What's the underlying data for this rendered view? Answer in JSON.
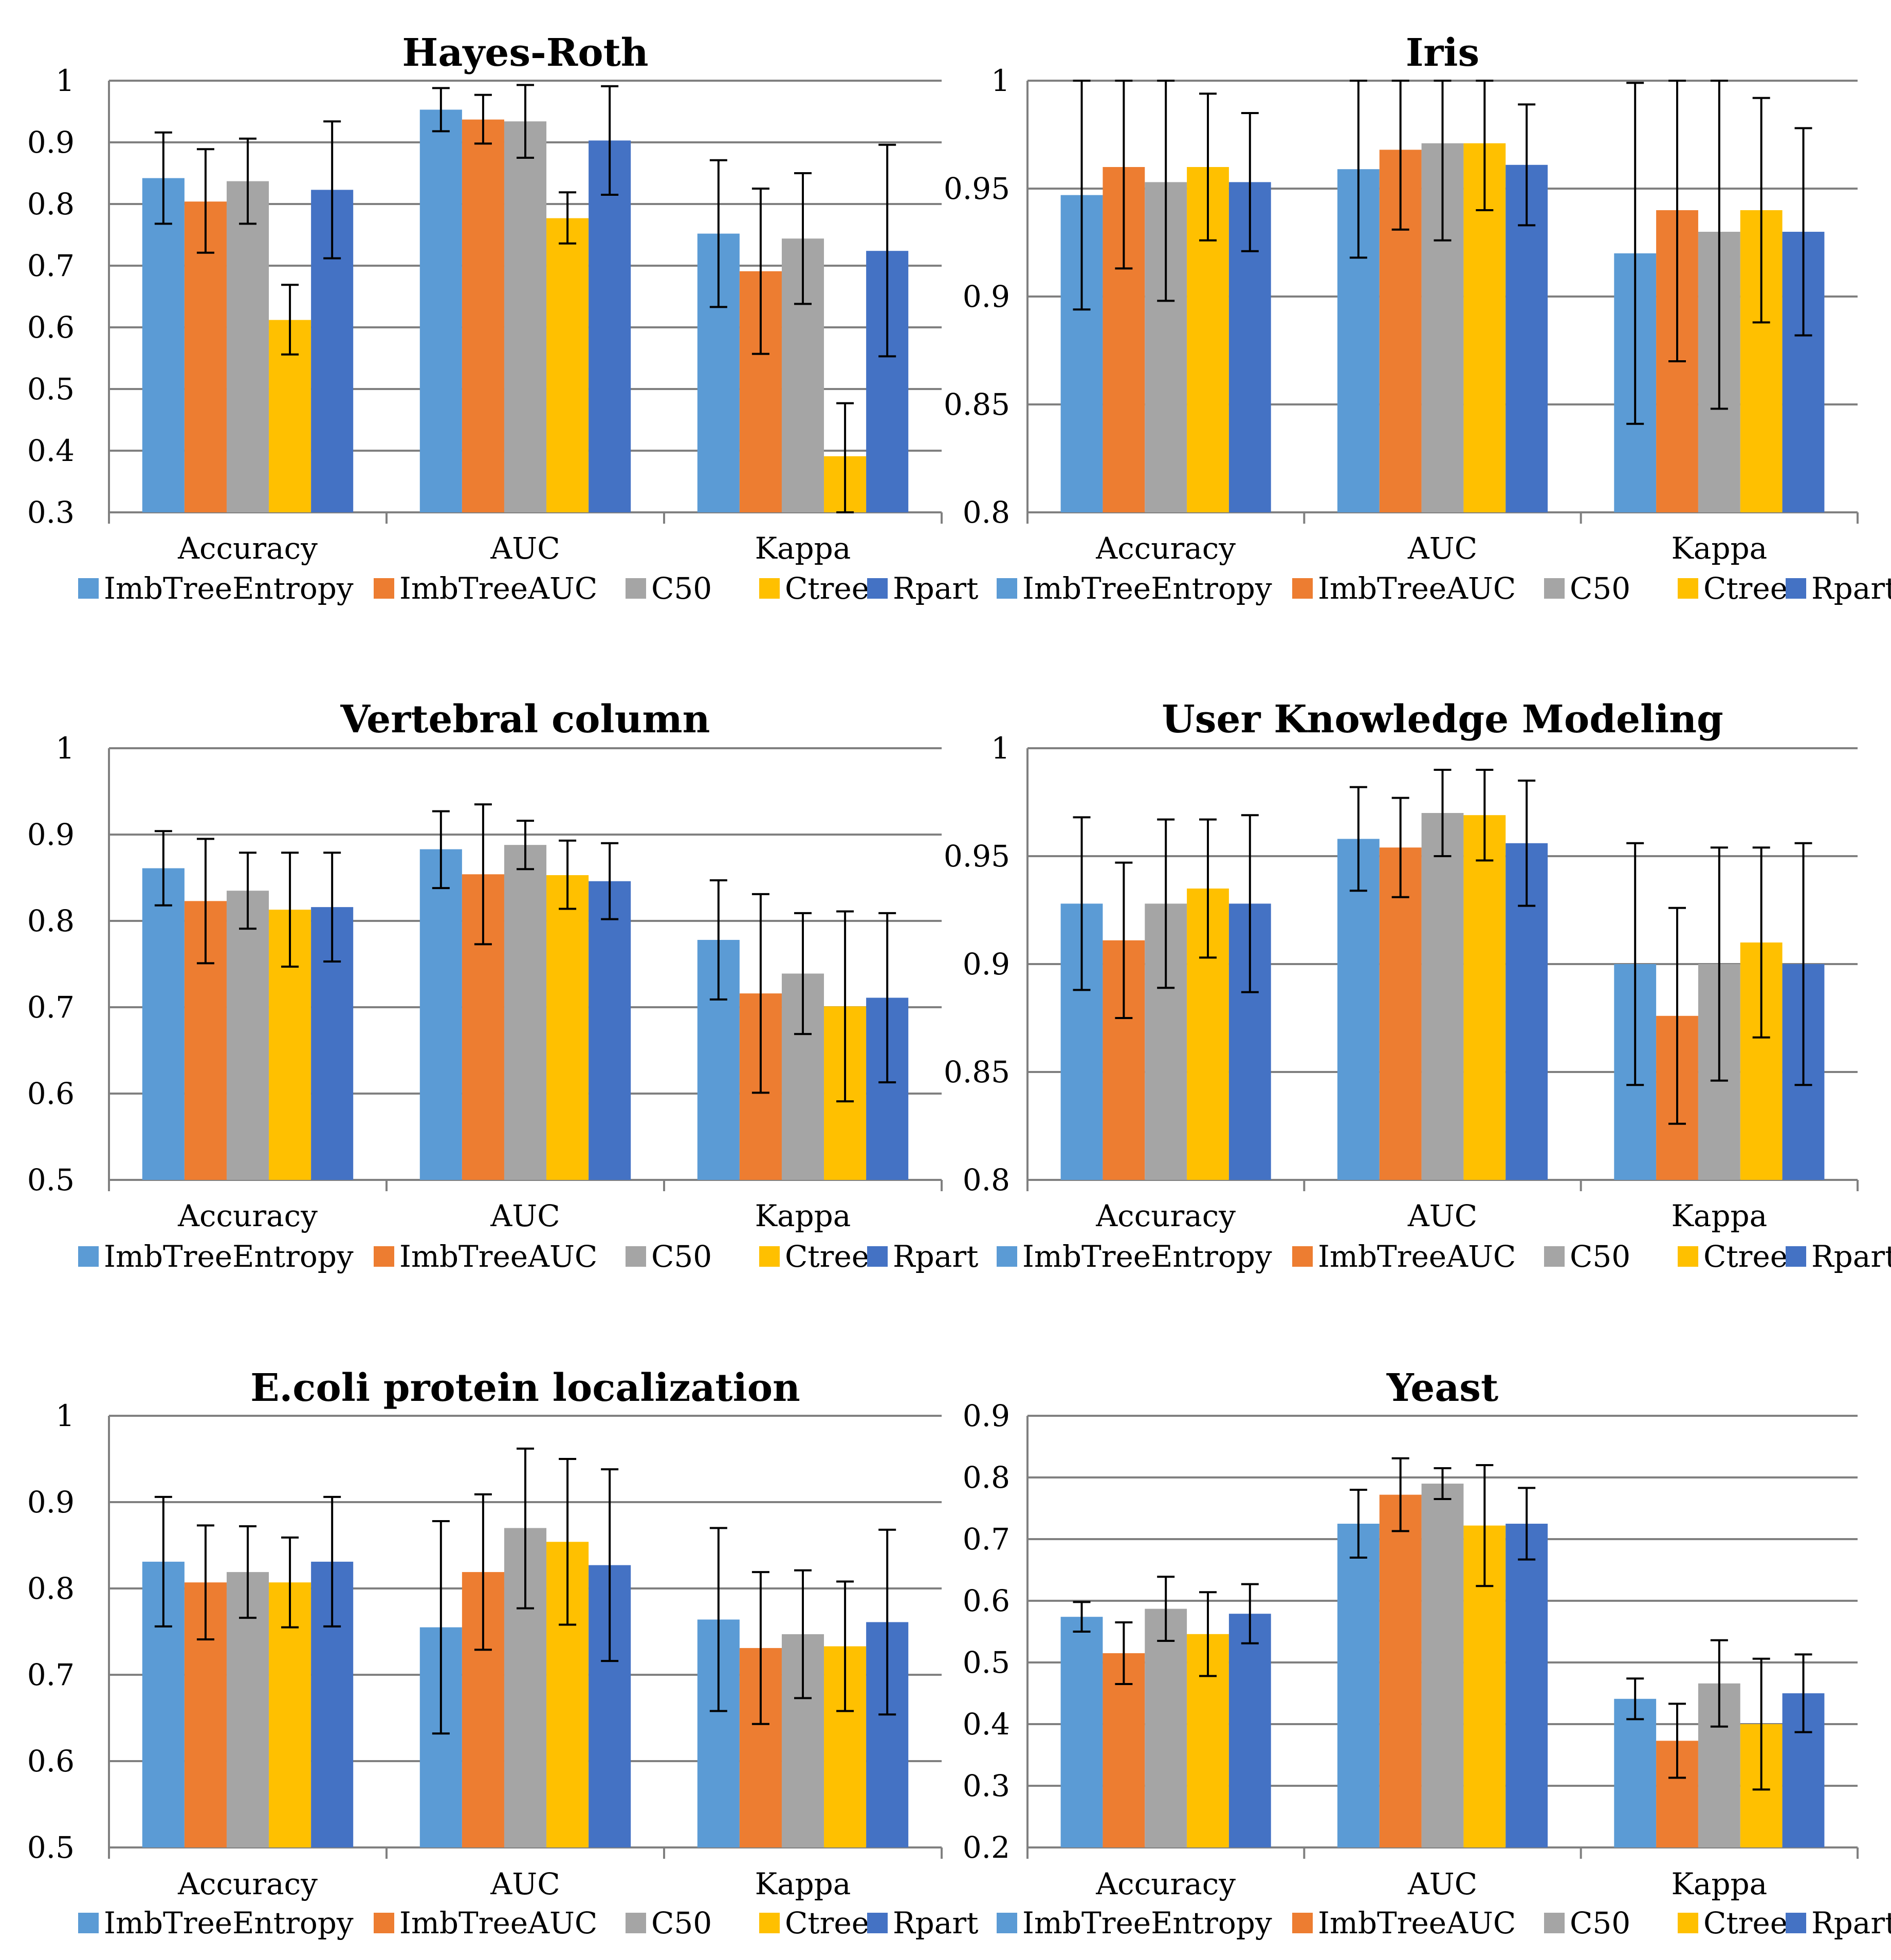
{
  "figure": {
    "series_colors": {
      "ImbTreeEntropy": "#5B9BD5",
      "ImbTreeAUC": "#ED7D31",
      "C50": "#A5A5A5",
      "Ctree": "#FFC000",
      "Rpart": "#4472C4"
    },
    "gridline_color": "#808080"
  },
  "chart_data": [
    {
      "type": "bar",
      "title": "Hayes-Roth",
      "categories": [
        "Accuracy",
        "AUC",
        "Kappa"
      ],
      "ylim": [
        0.3,
        1.0
      ],
      "yticks": [
        0.3,
        0.4,
        0.5,
        0.6,
        0.7,
        0.8,
        0.9,
        1.0
      ],
      "ytick_labels": [
        "0.3",
        "0.4",
        "0.5",
        "0.6",
        "0.7",
        "0.8",
        "0.9",
        "1"
      ],
      "legend_position": "bottom",
      "grid": true,
      "series": [
        {
          "name": "ImbTreeEntropy",
          "values": [
            0.842,
            0.953,
            0.752
          ],
          "err_low": [
            0.768,
            0.918,
            0.633
          ],
          "err_high": [
            0.916,
            0.988,
            0.871
          ]
        },
        {
          "name": "ImbTreeAUC",
          "values": [
            0.804,
            0.937,
            0.691
          ],
          "err_low": [
            0.721,
            0.898,
            0.557
          ],
          "err_high": [
            0.889,
            0.977,
            0.825
          ]
        },
        {
          "name": "C50",
          "values": [
            0.837,
            0.934,
            0.744
          ],
          "err_low": [
            0.768,
            0.875,
            0.638
          ],
          "err_high": [
            0.906,
            0.993,
            0.85
          ]
        },
        {
          "name": "Ctree",
          "values": [
            0.612,
            0.777,
            0.391
          ],
          "err_low": [
            0.556,
            0.736,
            0.3
          ],
          "err_high": [
            0.669,
            0.819,
            0.477
          ]
        },
        {
          "name": "Rpart",
          "values": [
            0.823,
            0.903,
            0.724
          ],
          "err_low": [
            0.712,
            0.815,
            0.553
          ],
          "err_high": [
            0.934,
            0.991,
            0.896
          ]
        }
      ]
    },
    {
      "type": "bar",
      "title": "Iris",
      "categories": [
        "Accuracy",
        "AUC",
        "Kappa"
      ],
      "ylim": [
        0.8,
        1.0
      ],
      "yticks": [
        0.8,
        0.85,
        0.9,
        0.95,
        1.0
      ],
      "ytick_labels": [
        "0.8",
        "0.85",
        "0.9",
        "0.95",
        "1"
      ],
      "legend_position": "bottom",
      "grid": true,
      "series": [
        {
          "name": "ImbTreeEntropy",
          "values": [
            0.947,
            0.959,
            0.92
          ],
          "err_low": [
            0.894,
            0.918,
            0.841
          ],
          "err_high": [
            1.0,
            1.0,
            0.999
          ]
        },
        {
          "name": "ImbTreeAUC",
          "values": [
            0.96,
            0.968,
            0.94
          ],
          "err_low": [
            0.913,
            0.931,
            0.87
          ],
          "err_high": [
            1.0,
            1.0,
            1.0
          ]
        },
        {
          "name": "C50",
          "values": [
            0.953,
            0.971,
            0.93
          ],
          "err_low": [
            0.898,
            0.926,
            0.848
          ],
          "err_high": [
            1.0,
            1.0,
            1.0
          ]
        },
        {
          "name": "Ctree",
          "values": [
            0.96,
            0.971,
            0.94
          ],
          "err_low": [
            0.926,
            0.94,
            0.888
          ],
          "err_high": [
            0.994,
            1.0,
            0.992
          ]
        },
        {
          "name": "Rpart",
          "values": [
            0.953,
            0.961,
            0.93
          ],
          "err_low": [
            0.921,
            0.933,
            0.882
          ],
          "err_high": [
            0.985,
            0.989,
            0.978
          ]
        }
      ]
    },
    {
      "type": "bar",
      "title": "Vertebral column",
      "categories": [
        "Accuracy",
        "AUC",
        "Kappa"
      ],
      "ylim": [
        0.5,
        1.0
      ],
      "yticks": [
        0.5,
        0.6,
        0.7,
        0.8,
        0.9,
        1.0
      ],
      "ytick_labels": [
        "0.5",
        "0.6",
        "0.7",
        "0.8",
        "0.9",
        "1"
      ],
      "legend_position": "bottom",
      "grid": true,
      "series": [
        {
          "name": "ImbTreeEntropy",
          "values": [
            0.861,
            0.883,
            0.778
          ],
          "err_low": [
            0.818,
            0.838,
            0.709
          ],
          "err_high": [
            0.904,
            0.927,
            0.847
          ]
        },
        {
          "name": "ImbTreeAUC",
          "values": [
            0.823,
            0.854,
            0.716
          ],
          "err_low": [
            0.751,
            0.773,
            0.601
          ],
          "err_high": [
            0.895,
            0.935,
            0.831
          ]
        },
        {
          "name": "C50",
          "values": [
            0.835,
            0.888,
            0.739
          ],
          "err_low": [
            0.791,
            0.86,
            0.669
          ],
          "err_high": [
            0.879,
            0.916,
            0.809
          ]
        },
        {
          "name": "Ctree",
          "values": [
            0.813,
            0.853,
            0.701
          ],
          "err_low": [
            0.747,
            0.814,
            0.591
          ],
          "err_high": [
            0.879,
            0.893,
            0.811
          ]
        },
        {
          "name": "Rpart",
          "values": [
            0.816,
            0.846,
            0.711
          ],
          "err_low": [
            0.753,
            0.802,
            0.613
          ],
          "err_high": [
            0.879,
            0.89,
            0.809
          ]
        }
      ]
    },
    {
      "type": "bar",
      "title": "User Knowledge Modeling",
      "categories": [
        "Accuracy",
        "AUC",
        "Kappa"
      ],
      "ylim": [
        0.8,
        1.0
      ],
      "yticks": [
        0.8,
        0.85,
        0.9,
        0.95,
        1.0
      ],
      "ytick_labels": [
        "0.8",
        "0.85",
        "0.9",
        "0.95",
        "1"
      ],
      "legend_position": "bottom",
      "grid": true,
      "series": [
        {
          "name": "ImbTreeEntropy",
          "values": [
            0.928,
            0.958,
            0.9
          ],
          "err_low": [
            0.888,
            0.934,
            0.844
          ],
          "err_high": [
            0.968,
            0.982,
            0.956
          ]
        },
        {
          "name": "ImbTreeAUC",
          "values": [
            0.911,
            0.954,
            0.876
          ],
          "err_low": [
            0.875,
            0.931,
            0.826
          ],
          "err_high": [
            0.947,
            0.977,
            0.926
          ]
        },
        {
          "name": "C50",
          "values": [
            0.928,
            0.97,
            0.9
          ],
          "err_low": [
            0.889,
            0.95,
            0.846
          ],
          "err_high": [
            0.967,
            0.99,
            0.954
          ]
        },
        {
          "name": "Ctree",
          "values": [
            0.935,
            0.969,
            0.91
          ],
          "err_low": [
            0.903,
            0.948,
            0.866
          ],
          "err_high": [
            0.967,
            0.99,
            0.954
          ]
        },
        {
          "name": "Rpart",
          "values": [
            0.928,
            0.956,
            0.9
          ],
          "err_low": [
            0.887,
            0.927,
            0.844
          ],
          "err_high": [
            0.969,
            0.985,
            0.956
          ]
        }
      ]
    },
    {
      "type": "bar",
      "title": "E.coli protein localization",
      "categories": [
        "Accuracy",
        "AUC",
        "Kappa"
      ],
      "ylim": [
        0.5,
        1.0
      ],
      "yticks": [
        0.5,
        0.6,
        0.7,
        0.8,
        0.9,
        1.0
      ],
      "ytick_labels": [
        "0.5",
        "0.6",
        "0.7",
        "0.8",
        "0.9",
        "1"
      ],
      "legend_position": "bottom",
      "grid": true,
      "series": [
        {
          "name": "ImbTreeEntropy",
          "values": [
            0.831,
            0.755,
            0.764
          ],
          "err_low": [
            0.756,
            0.632,
            0.658
          ],
          "err_high": [
            0.906,
            0.878,
            0.87
          ]
        },
        {
          "name": "ImbTreeAUC",
          "values": [
            0.807,
            0.819,
            0.731
          ],
          "err_low": [
            0.741,
            0.729,
            0.643
          ],
          "err_high": [
            0.873,
            0.909,
            0.819
          ]
        },
        {
          "name": "C50",
          "values": [
            0.819,
            0.87,
            0.747
          ],
          "err_low": [
            0.766,
            0.777,
            0.673
          ],
          "err_high": [
            0.872,
            0.962,
            0.821
          ]
        },
        {
          "name": "Ctree",
          "values": [
            0.807,
            0.854,
            0.733
          ],
          "err_low": [
            0.755,
            0.758,
            0.658
          ],
          "err_high": [
            0.859,
            0.95,
            0.808
          ]
        },
        {
          "name": "Rpart",
          "values": [
            0.831,
            0.827,
            0.761
          ],
          "err_low": [
            0.756,
            0.716,
            0.654
          ],
          "err_high": [
            0.906,
            0.938,
            0.868
          ]
        }
      ]
    },
    {
      "type": "bar",
      "title": "Yeast",
      "categories": [
        "Accuracy",
        "AUC",
        "Kappa"
      ],
      "ylim": [
        0.2,
        0.9
      ],
      "yticks": [
        0.2,
        0.3,
        0.4,
        0.5,
        0.6,
        0.7,
        0.8,
        0.9
      ],
      "ytick_labels": [
        "0.2",
        "0.3",
        "0.4",
        "0.5",
        "0.6",
        "0.7",
        "0.8",
        "0.9"
      ],
      "legend_position": "bottom",
      "grid": true,
      "series": [
        {
          "name": "ImbTreeEntropy",
          "values": [
            0.574,
            0.725,
            0.441
          ],
          "err_low": [
            0.55,
            0.67,
            0.408
          ],
          "err_high": [
            0.598,
            0.78,
            0.474
          ]
        },
        {
          "name": "ImbTreeAUC",
          "values": [
            0.515,
            0.772,
            0.373
          ],
          "err_low": [
            0.465,
            0.713,
            0.313
          ],
          "err_high": [
            0.565,
            0.831,
            0.433
          ]
        },
        {
          "name": "C50",
          "values": [
            0.587,
            0.79,
            0.466
          ],
          "err_low": [
            0.535,
            0.765,
            0.396
          ],
          "err_high": [
            0.639,
            0.815,
            0.536
          ]
        },
        {
          "name": "Ctree",
          "values": [
            0.546,
            0.722,
            0.4
          ],
          "err_low": [
            0.478,
            0.624,
            0.294
          ],
          "err_high": [
            0.614,
            0.82,
            0.506
          ]
        },
        {
          "name": "Rpart",
          "values": [
            0.579,
            0.725,
            0.45
          ],
          "err_low": [
            0.531,
            0.667,
            0.387
          ],
          "err_high": [
            0.627,
            0.783,
            0.513
          ]
        }
      ]
    }
  ]
}
